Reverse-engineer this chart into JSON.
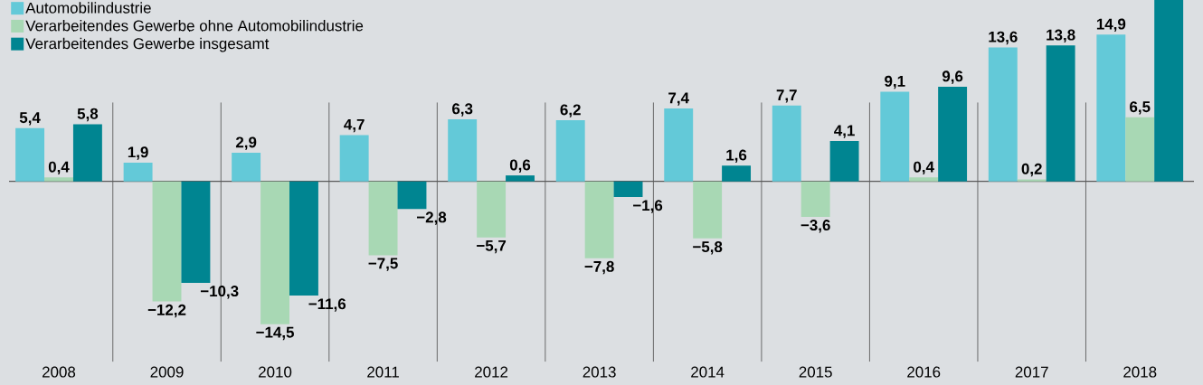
{
  "chart_data": {
    "type": "bar",
    "categories": [
      "2008",
      "2009",
      "2010",
      "2011",
      "2012",
      "2013",
      "2014",
      "2015",
      "2016",
      "2017",
      "2018"
    ],
    "series": [
      {
        "name": "Automobilindustrie",
        "color": "#63c9d8",
        "values": [
          5.4,
          1.9,
          2.9,
          4.7,
          6.3,
          6.2,
          7.4,
          7.7,
          9.1,
          13.6,
          14.9
        ],
        "value_labels": [
          "5,4",
          "1,9",
          "2,9",
          "4,7",
          "6,3",
          "6,2",
          "7,4",
          "7,7",
          "9,1",
          "13,6",
          "14,9"
        ]
      },
      {
        "name": "Verarbeitendes Gewerbe ohne Automobilindustrie",
        "color": "#a8d8b4",
        "values": [
          0.4,
          -12.2,
          -14.5,
          -7.5,
          -5.7,
          -7.8,
          -5.8,
          -3.6,
          0.4,
          0.2,
          6.5
        ],
        "value_labels": [
          "0,4",
          "−12,2",
          "−14,5",
          "−7,5",
          "−5,7",
          "−7,8",
          "−5,8",
          "−3,6",
          "0,4",
          "0,2",
          "6,5"
        ]
      },
      {
        "name": "Verarbeitendes Gewerbe insgesamt",
        "color": "#008591",
        "values": [
          5.8,
          -10.3,
          -11.6,
          -2.8,
          0.6,
          -1.6,
          1.6,
          4.1,
          9.6,
          13.8,
          18.4
        ],
        "value_labels": [
          "5,8",
          "−10,3",
          "−11,6",
          "−2,8",
          "0,6",
          "−1,6",
          "1,6",
          "4,1",
          "9,6",
          "13,8",
          null
        ]
      }
    ],
    "ylim": [
      -18.3,
      18.4
    ],
    "legend": "top left"
  }
}
